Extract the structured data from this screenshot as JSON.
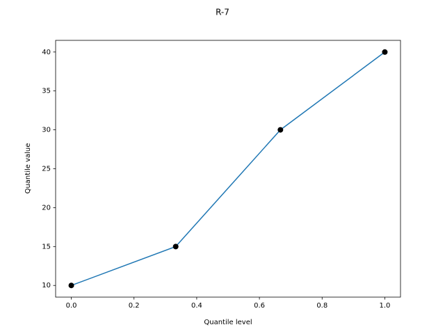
{
  "chart_data": {
    "type": "line",
    "title": "R-7",
    "x_label": "Quantile level",
    "y_label": "Quantile value",
    "x": [
      0,
      0.333,
      0.667,
      1
    ],
    "series": [
      {
        "values": [
          10,
          15,
          30,
          40
        ],
        "color": "#1f77b4",
        "marker_color": "#000000"
      }
    ],
    "xlim": [
      -0.05,
      1.05
    ],
    "xticks": [
      0.0,
      0.2,
      0.4,
      0.6,
      0.8,
      1.0
    ],
    "ylim": [
      8.5,
      41.5
    ],
    "yticks": [
      10,
      15,
      20,
      25,
      30,
      35,
      40
    ],
    "grid": false
  }
}
